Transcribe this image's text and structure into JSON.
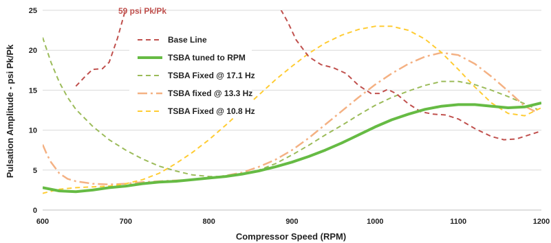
{
  "chart_data": {
    "type": "line",
    "xlabel": "Compressor Speed (RPM)",
    "ylabel": "Pulsation Amplitude - psi Pk/Pk",
    "xlim": [
      600,
      1200
    ],
    "ylim": [
      0,
      25
    ],
    "x_ticks": [
      600,
      700,
      800,
      900,
      1000,
      1100,
      1200
    ],
    "y_ticks": [
      0,
      5,
      10,
      15,
      20,
      25
    ],
    "grid": "horizontal",
    "legend_position": "upper-left inside plot",
    "annotation": {
      "text": "59 psi Pk/Pk",
      "color": "#c0504d"
    },
    "series": [
      {
        "name": "Base Line",
        "color": "#c0504d",
        "style": "dashed",
        "width": 2,
        "points": [
          [
            640,
            15.5
          ],
          [
            650,
            16.6
          ],
          [
            660,
            17.6
          ],
          [
            672,
            17.7
          ],
          [
            680,
            18.5
          ],
          [
            690,
            21.5
          ],
          [
            700,
            25.2
          ],
          [
            704,
            27
          ],
          null,
          [
            880,
            27
          ],
          [
            887,
            25
          ],
          [
            895,
            23.5
          ],
          [
            905,
            21.3
          ],
          [
            920,
            19.2
          ],
          [
            935,
            18.2
          ],
          [
            950,
            17.8
          ],
          [
            965,
            17.1
          ],
          [
            980,
            15.6
          ],
          [
            995,
            14.6
          ],
          [
            1005,
            14.6
          ],
          [
            1015,
            15.1
          ],
          [
            1025,
            14.6
          ],
          [
            1040,
            13.3
          ],
          [
            1055,
            12.3
          ],
          [
            1070,
            12.0
          ],
          [
            1085,
            11.9
          ],
          [
            1100,
            11.4
          ],
          [
            1120,
            10.2
          ],
          [
            1140,
            9.2
          ],
          [
            1155,
            8.8
          ],
          [
            1170,
            8.9
          ],
          [
            1185,
            9.4
          ],
          [
            1200,
            9.9
          ]
        ]
      },
      {
        "name": "TSBA tuned to RPM",
        "color": "#66bb44",
        "style": "solid",
        "width": 4,
        "points": [
          [
            600,
            2.8
          ],
          [
            620,
            2.4
          ],
          [
            640,
            2.3
          ],
          [
            660,
            2.5
          ],
          [
            680,
            2.8
          ],
          [
            700,
            3.0
          ],
          [
            720,
            3.3
          ],
          [
            740,
            3.5
          ],
          [
            760,
            3.6
          ],
          [
            780,
            3.8
          ],
          [
            800,
            4.0
          ],
          [
            820,
            4.2
          ],
          [
            840,
            4.5
          ],
          [
            860,
            4.9
          ],
          [
            880,
            5.4
          ],
          [
            900,
            6.0
          ],
          [
            920,
            6.7
          ],
          [
            940,
            7.5
          ],
          [
            960,
            8.4
          ],
          [
            980,
            9.4
          ],
          [
            1000,
            10.4
          ],
          [
            1020,
            11.3
          ],
          [
            1040,
            12.0
          ],
          [
            1060,
            12.6
          ],
          [
            1080,
            13.0
          ],
          [
            1100,
            13.2
          ],
          [
            1120,
            13.2
          ],
          [
            1140,
            13.0
          ],
          [
            1160,
            12.8
          ],
          [
            1180,
            12.9
          ],
          [
            1200,
            13.4
          ]
        ]
      },
      {
        "name": "TSBA Fixed @ 17.1 Hz",
        "color": "#9bbb59",
        "style": "dashed",
        "width": 2,
        "points": [
          [
            600,
            21.6
          ],
          [
            610,
            18.5
          ],
          [
            620,
            16.0
          ],
          [
            630,
            14.1
          ],
          [
            640,
            12.6
          ],
          [
            660,
            10.5
          ],
          [
            680,
            8.8
          ],
          [
            700,
            7.5
          ],
          [
            720,
            6.4
          ],
          [
            740,
            5.5
          ],
          [
            760,
            4.9
          ],
          [
            780,
            4.4
          ],
          [
            800,
            4.2
          ],
          [
            820,
            4.2
          ],
          [
            840,
            4.5
          ],
          [
            860,
            5.0
          ],
          [
            880,
            5.8
          ],
          [
            900,
            6.9
          ],
          [
            920,
            8.1
          ],
          [
            940,
            9.4
          ],
          [
            960,
            10.6
          ],
          [
            980,
            11.9
          ],
          [
            1000,
            13.1
          ],
          [
            1020,
            14.1
          ],
          [
            1040,
            14.9
          ],
          [
            1060,
            15.6
          ],
          [
            1080,
            16.1
          ],
          [
            1100,
            16.1
          ],
          [
            1120,
            15.7
          ],
          [
            1140,
            15.0
          ],
          [
            1160,
            14.2
          ],
          [
            1180,
            13.3
          ],
          [
            1195,
            12.6
          ]
        ]
      },
      {
        "name": "TSBA fixed @ 13.3 Hz",
        "color": "#f4b183",
        "style": "dashdot",
        "width": 2.5,
        "points": [
          [
            600,
            8.2
          ],
          [
            605,
            7.0
          ],
          [
            610,
            6.0
          ],
          [
            620,
            4.6
          ],
          [
            630,
            3.9
          ],
          [
            640,
            3.6
          ],
          [
            660,
            3.3
          ],
          [
            680,
            3.2
          ],
          [
            700,
            3.3
          ],
          [
            720,
            3.5
          ],
          [
            740,
            3.6
          ],
          [
            760,
            3.7
          ],
          [
            780,
            3.8
          ],
          [
            800,
            4.0
          ],
          [
            820,
            4.3
          ],
          [
            840,
            4.7
          ],
          [
            860,
            5.4
          ],
          [
            880,
            6.3
          ],
          [
            900,
            7.5
          ],
          [
            920,
            9.0
          ],
          [
            940,
            10.7
          ],
          [
            960,
            12.4
          ],
          [
            980,
            14.1
          ],
          [
            1000,
            15.7
          ],
          [
            1020,
            17.1
          ],
          [
            1040,
            18.3
          ],
          [
            1060,
            19.2
          ],
          [
            1080,
            19.7
          ],
          [
            1100,
            19.4
          ],
          [
            1120,
            18.3
          ],
          [
            1140,
            16.7
          ],
          [
            1160,
            14.9
          ],
          [
            1180,
            13.0
          ],
          [
            1195,
            12.2
          ]
        ]
      },
      {
        "name": "TSBA Fixed @ 10.8 Hz",
        "color": "#ffcc33",
        "style": "dashed",
        "width": 2,
        "points": [
          [
            600,
            2.1
          ],
          [
            620,
            2.6
          ],
          [
            640,
            2.8
          ],
          [
            660,
            2.9
          ],
          [
            680,
            3.0
          ],
          [
            700,
            3.3
          ],
          [
            720,
            3.8
          ],
          [
            740,
            4.6
          ],
          [
            760,
            5.8
          ],
          [
            780,
            7.2
          ],
          [
            800,
            8.8
          ],
          [
            820,
            10.6
          ],
          [
            840,
            12.5
          ],
          [
            860,
            14.4
          ],
          [
            880,
            16.3
          ],
          [
            900,
            18.0
          ],
          [
            920,
            19.6
          ],
          [
            940,
            20.9
          ],
          [
            960,
            21.9
          ],
          [
            980,
            22.6
          ],
          [
            1000,
            23.0
          ],
          [
            1020,
            23.0
          ],
          [
            1040,
            22.5
          ],
          [
            1060,
            21.4
          ],
          [
            1080,
            19.7
          ],
          [
            1100,
            17.6
          ],
          [
            1120,
            15.4
          ],
          [
            1140,
            13.4
          ],
          [
            1160,
            12.1
          ],
          [
            1180,
            11.8
          ],
          [
            1200,
            12.8
          ]
        ]
      }
    ]
  }
}
